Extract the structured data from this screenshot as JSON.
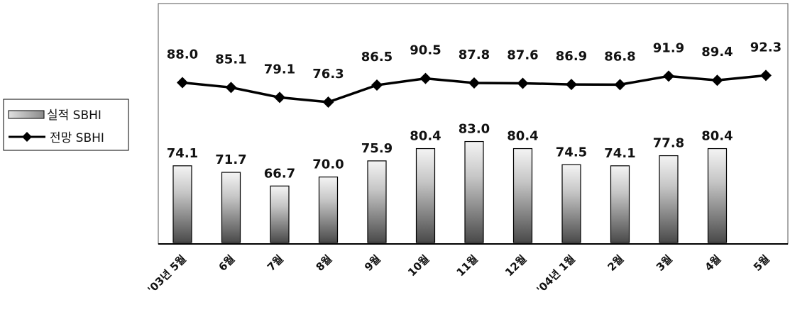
{
  "chart_data": {
    "type": "bar",
    "categories": [
      "'03년 5월",
      "6월",
      "7월",
      "8월",
      "9월",
      "10월",
      "11월",
      "12월",
      "'04년 1월",
      "2월",
      "3월",
      "4월",
      "5월"
    ],
    "series": [
      {
        "name": "실적 SBHI",
        "type": "bar",
        "values": [
          74.1,
          71.7,
          66.7,
          70.0,
          75.9,
          80.4,
          83.0,
          80.4,
          74.5,
          74.1,
          77.8,
          80.4,
          null
        ],
        "labels": [
          "74.1",
          "71.7",
          "66.7",
          "70.0",
          "75.9",
          "80.4",
          "83.0",
          "80.4",
          "74.5",
          "74.1",
          "77.8",
          "80.4",
          ""
        ]
      },
      {
        "name": "전망 SBHI",
        "type": "line",
        "values": [
          88.0,
          85.1,
          79.1,
          76.3,
          86.5,
          90.5,
          87.8,
          87.6,
          86.9,
          86.8,
          91.9,
          89.4,
          92.3
        ],
        "labels": [
          "88.0",
          "85.1",
          "79.1",
          "76.3",
          "86.5",
          "90.5",
          "87.8",
          "87.6",
          "86.9",
          "86.8",
          "91.9",
          "89.4",
          "92.3"
        ]
      }
    ],
    "legend_position": "left",
    "grid": false
  },
  "legend": {
    "bar_label": "실적 SBHI",
    "line_label": "전망 SBHI"
  }
}
